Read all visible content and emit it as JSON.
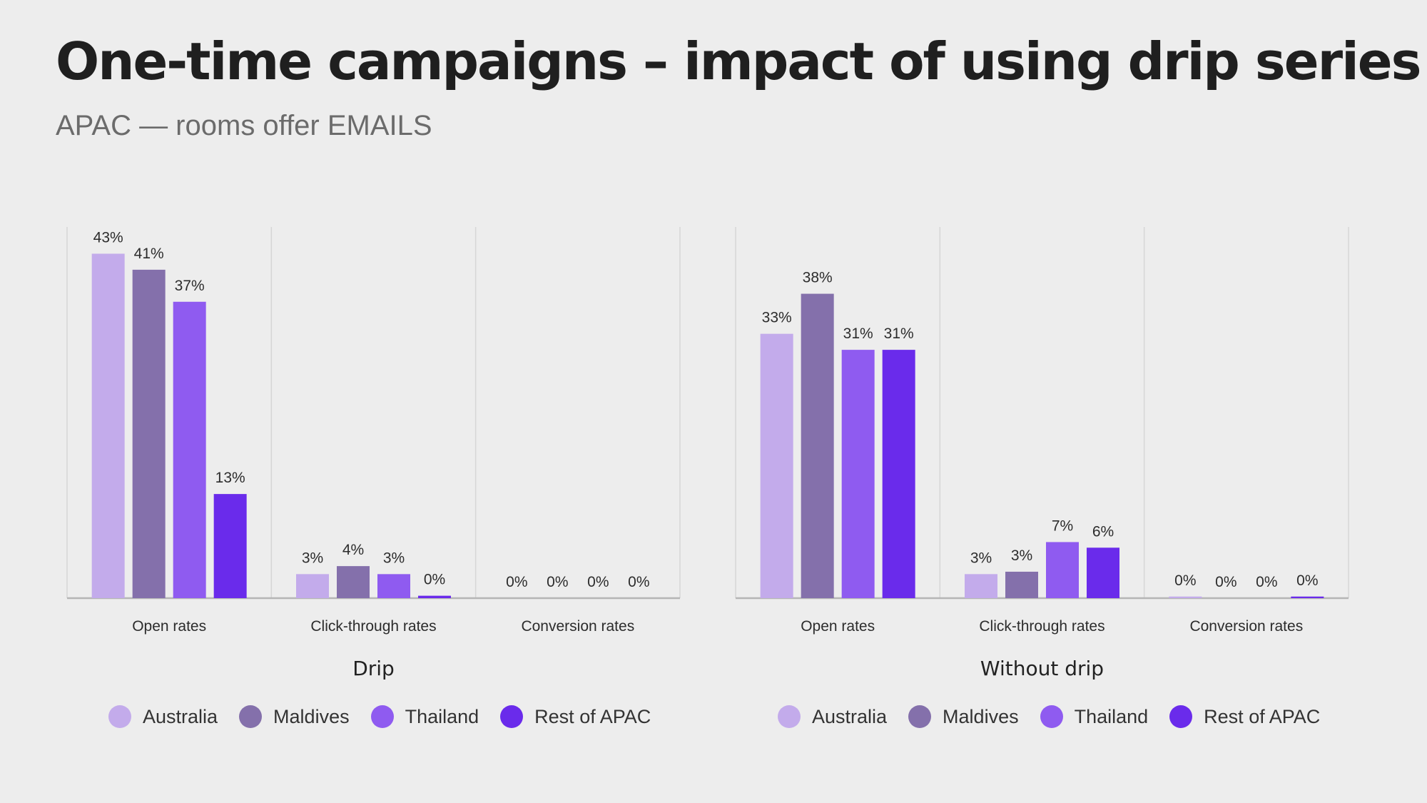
{
  "header": {
    "title": "One-time campaigns – impact of using drip series",
    "subtitle": "APAC — rooms offer EMAILS"
  },
  "colors": {
    "series": [
      "#c3abeb",
      "#8470ab",
      "#8f5bf0",
      "#6a2beb"
    ],
    "grid": "#d6d6d6",
    "axis": "#b5b5b5",
    "label": "#2c2c2c"
  },
  "chart_data": [
    {
      "type": "bar",
      "title": "Drip",
      "categories": [
        "Open rates",
        "Click-through rates",
        "Conversion rates"
      ],
      "ylim": [
        0,
        45
      ],
      "grid": "vertical separators",
      "legend_position": "bottom",
      "series": [
        {
          "name": "Australia",
          "values": [
            43,
            3,
            0
          ],
          "labels": [
            "43%",
            "3%",
            "0%"
          ]
        },
        {
          "name": "Maldives",
          "values": [
            41,
            4,
            0
          ],
          "labels": [
            "41%",
            "4%",
            "0%"
          ]
        },
        {
          "name": "Thailand",
          "values": [
            37,
            3,
            0
          ],
          "labels": [
            "37%",
            "3%",
            "0%"
          ]
        },
        {
          "name": "Rest of APAC",
          "values": [
            13,
            0.3,
            0
          ],
          "labels": [
            "13%",
            "0%",
            "0%"
          ]
        }
      ]
    },
    {
      "type": "bar",
      "title": "Without drip",
      "categories": [
        "Open rates",
        "Click-through rates",
        "Conversion rates"
      ],
      "ylim": [
        0,
        45
      ],
      "grid": "vertical separators",
      "legend_position": "bottom",
      "series": [
        {
          "name": "Australia",
          "values": [
            33,
            3,
            0.2
          ],
          "labels": [
            "33%",
            "3%",
            "0%"
          ]
        },
        {
          "name": "Maldives",
          "values": [
            38,
            3.3,
            0
          ],
          "labels": [
            "38%",
            "3%",
            "0%"
          ]
        },
        {
          "name": "Thailand",
          "values": [
            31,
            7,
            0
          ],
          "labels": [
            "31%",
            "7%",
            "0%"
          ]
        },
        {
          "name": "Rest of APAC",
          "values": [
            31,
            6.3,
            0.2
          ],
          "labels": [
            "31%",
            "6%",
            "0%"
          ]
        }
      ]
    }
  ]
}
